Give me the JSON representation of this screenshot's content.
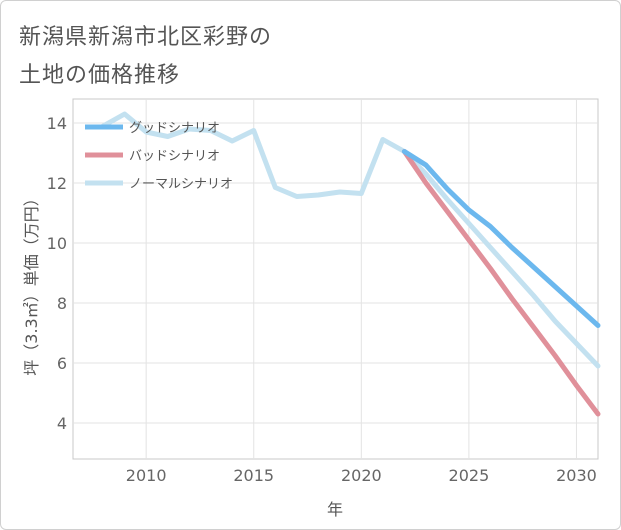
{
  "title": {
    "line1": "新潟県新潟市北区彩野の",
    "line2": "土地の価格推移"
  },
  "chart_data": {
    "type": "line",
    "title": "新潟県新潟市北区彩野の土地の価格推移",
    "xlabel": "年",
    "ylabel": "坪（3.3㎡）単価（万円）",
    "xlim": [
      2006.6,
      2031
    ],
    "ylim": [
      2.8,
      14.8
    ],
    "xticks": [
      2010,
      2015,
      2020,
      2025,
      2030
    ],
    "yticks": [
      4,
      6,
      8,
      10,
      12,
      14
    ],
    "grid": true,
    "legend_position": "top-left",
    "series": [
      {
        "name": "グッドシナリオ",
        "color": "#6cb8ee",
        "x": [
          2022,
          2023,
          2024,
          2025,
          2026,
          2027,
          2028,
          2029,
          2030,
          2031
        ],
        "y": [
          13.05,
          12.6,
          11.8,
          11.1,
          10.55,
          9.85,
          9.2,
          8.55,
          7.9,
          7.25
        ]
      },
      {
        "name": "バッドシナリオ",
        "color": "#e0909a",
        "x": [
          2022,
          2023,
          2024,
          2025,
          2026,
          2027,
          2028,
          2029,
          2030,
          2031
        ],
        "y": [
          13.05,
          12.0,
          11.05,
          10.1,
          9.15,
          8.15,
          7.2,
          6.25,
          5.25,
          4.3
        ]
      },
      {
        "name": "ノーマルシナリオ",
        "color": "#c3e1f0",
        "x": [
          2008,
          2009,
          2010,
          2011,
          2012,
          2013,
          2014,
          2015,
          2016,
          2017,
          2018,
          2019,
          2020,
          2021,
          2022,
          2023,
          2024,
          2025,
          2026,
          2027,
          2028,
          2029,
          2030,
          2031
        ],
        "y": [
          13.9,
          14.3,
          13.7,
          13.55,
          13.8,
          13.75,
          13.4,
          13.75,
          11.85,
          11.55,
          11.6,
          11.7,
          11.65,
          13.45,
          13.05,
          12.3,
          11.45,
          10.65,
          9.85,
          9.05,
          8.25,
          7.4,
          6.65,
          5.9
        ]
      }
    ]
  }
}
